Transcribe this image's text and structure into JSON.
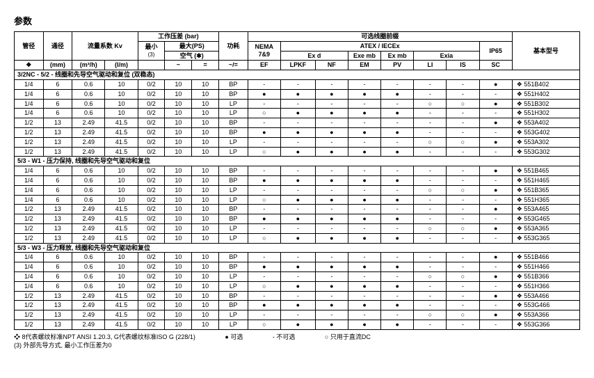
{
  "title": "参数",
  "header": {
    "pipe": "管径",
    "bore": "通径",
    "kv": "流量系数\nKv",
    "workdiff": "工作压差 (bar)",
    "min": "最小",
    "minnote": "(3)",
    "max": "最大(PS)",
    "air": "空气 (✱)",
    "power": "功耗",
    "coilprefix": "可选线圈前缀",
    "nema": "NEMA\n7&9",
    "atex": "ATEX / IECEx",
    "exd": "Ex d",
    "exemb": "Exe\nmb",
    "exmb": "Ex mb",
    "exia": "Exia",
    "ip65": "IP65",
    "model": "基本型号",
    "unit_pipe": "❖",
    "unit_bore": "(mm)",
    "unit_m3h": "(m³/h)",
    "unit_lm": "(l/m)",
    "unit_tilde": "~",
    "unit_eq": "=",
    "unit_power": "~/=",
    "col_ef": "EF",
    "col_lpkf": "LPKF",
    "col_nf": "NF",
    "col_em": "EM",
    "col_pv": "PV",
    "col_li": "LI",
    "col_is": "IS",
    "col_sc": "SC"
  },
  "sections": [
    {
      "title": "3/2NC - 5/2 - 线圈和先导空气驱动和复位 (双稳态)",
      "rows": [
        {
          "pipe": "1/4",
          "bore": "6",
          "m3h": "0.6",
          "lm": "10",
          "min": "0/2",
          "t": "10",
          "e": "10",
          "pw": "BP",
          "ef": "-",
          "lpkf": "-",
          "nf": "-",
          "em": "-",
          "pv": "-",
          "li": "-",
          "is": "-",
          "sc": "●",
          "model": "551B402"
        },
        {
          "pipe": "1/4",
          "bore": "6",
          "m3h": "0.6",
          "lm": "10",
          "min": "0/2",
          "t": "10",
          "e": "10",
          "pw": "BP",
          "ef": "●",
          "lpkf": "●",
          "nf": "●",
          "em": "●",
          "pv": "●",
          "li": "-",
          "is": "-",
          "sc": "-",
          "model": "551H402"
        },
        {
          "pipe": "1/4",
          "bore": "6",
          "m3h": "0.6",
          "lm": "10",
          "min": "0/2",
          "t": "10",
          "e": "10",
          "pw": "LP",
          "ef": "-",
          "lpkf": "-",
          "nf": "-",
          "em": "-",
          "pv": "-",
          "li": "○",
          "is": "○",
          "sc": "●",
          "model": "551B302"
        },
        {
          "pipe": "1/4",
          "bore": "6",
          "m3h": "0.6",
          "lm": "10",
          "min": "0/2",
          "t": "10",
          "e": "10",
          "pw": "LP",
          "ef": "○",
          "lpkf": "●",
          "nf": "●",
          "em": "●",
          "pv": "●",
          "li": "-",
          "is": "-",
          "sc": "-",
          "model": "551H302"
        },
        {
          "pipe": "1/2",
          "bore": "13",
          "m3h": "2.49",
          "lm": "41.5",
          "min": "0/2",
          "t": "10",
          "e": "10",
          "pw": "BP",
          "ef": "-",
          "lpkf": "-",
          "nf": "-",
          "em": "-",
          "pv": "-",
          "li": "-",
          "is": "-",
          "sc": "●",
          "model": "553A402"
        },
        {
          "pipe": "1/2",
          "bore": "13",
          "m3h": "2.49",
          "lm": "41.5",
          "min": "0/2",
          "t": "10",
          "e": "10",
          "pw": "BP",
          "ef": "●",
          "lpkf": "●",
          "nf": "●",
          "em": "●",
          "pv": "●",
          "li": "-",
          "is": "-",
          "sc": "-",
          "model": "553G402"
        },
        {
          "pipe": "1/2",
          "bore": "13",
          "m3h": "2.49",
          "lm": "41.5",
          "min": "0/2",
          "t": "10",
          "e": "10",
          "pw": "LP",
          "ef": "-",
          "lpkf": "-",
          "nf": "-",
          "em": "-",
          "pv": "-",
          "li": "○",
          "is": "○",
          "sc": "●",
          "model": "553A302"
        },
        {
          "pipe": "1/2",
          "bore": "13",
          "m3h": "2.49",
          "lm": "41.5",
          "min": "0/2",
          "t": "10",
          "e": "10",
          "pw": "LP",
          "ef": "○",
          "lpkf": "●",
          "nf": "●",
          "em": "●",
          "pv": "●",
          "li": "-",
          "is": "-",
          "sc": "-",
          "model": "553G302"
        }
      ]
    },
    {
      "title": "5/3 - W1 - 压力保持, 线圈和先导空气驱动和复位",
      "rows": [
        {
          "pipe": "1/4",
          "bore": "6",
          "m3h": "0.6",
          "lm": "10",
          "min": "0/2",
          "t": "10",
          "e": "10",
          "pw": "BP",
          "ef": "-",
          "lpkf": "-",
          "nf": "-",
          "em": "-",
          "pv": "-",
          "li": "-",
          "is": "-",
          "sc": "●",
          "model": "551B465"
        },
        {
          "pipe": "1/4",
          "bore": "6",
          "m3h": "0.6",
          "lm": "10",
          "min": "0/2",
          "t": "10",
          "e": "10",
          "pw": "BP",
          "ef": "●",
          "lpkf": "●",
          "nf": "●",
          "em": "●",
          "pv": "●",
          "li": "-",
          "is": "-",
          "sc": "-",
          "model": "551H465"
        },
        {
          "pipe": "1/4",
          "bore": "6",
          "m3h": "0.6",
          "lm": "10",
          "min": "0/2",
          "t": "10",
          "e": "10",
          "pw": "LP",
          "ef": "-",
          "lpkf": "-",
          "nf": "-",
          "em": "-",
          "pv": "-",
          "li": "○",
          "is": "○",
          "sc": "●",
          "model": "551B365"
        },
        {
          "pipe": "1/4",
          "bore": "6",
          "m3h": "0.6",
          "lm": "10",
          "min": "0/2",
          "t": "10",
          "e": "10",
          "pw": "LP",
          "ef": "○",
          "lpkf": "●",
          "nf": "●",
          "em": "●",
          "pv": "●",
          "li": "-",
          "is": "-",
          "sc": "-",
          "model": "551H365"
        },
        {
          "pipe": "1/2",
          "bore": "13",
          "m3h": "2.49",
          "lm": "41.5",
          "min": "0/2",
          "t": "10",
          "e": "10",
          "pw": "BP",
          "ef": "-",
          "lpkf": "-",
          "nf": "-",
          "em": "-",
          "pv": "-",
          "li": "-",
          "is": "-",
          "sc": "●",
          "model": "553A465"
        },
        {
          "pipe": "1/2",
          "bore": "13",
          "m3h": "2.49",
          "lm": "41.5",
          "min": "0/2",
          "t": "10",
          "e": "10",
          "pw": "BP",
          "ef": "●",
          "lpkf": "●",
          "nf": "●",
          "em": "●",
          "pv": "●",
          "li": "-",
          "is": "-",
          "sc": "-",
          "model": "553G465"
        },
        {
          "pipe": "1/2",
          "bore": "13",
          "m3h": "2.49",
          "lm": "41.5",
          "min": "0/2",
          "t": "10",
          "e": "10",
          "pw": "LP",
          "ef": "-",
          "lpkf": "-",
          "nf": "-",
          "em": "-",
          "pv": "-",
          "li": "○",
          "is": "○",
          "sc": "●",
          "model": "553A365"
        },
        {
          "pipe": "1/2",
          "bore": "13",
          "m3h": "2.49",
          "lm": "41.5",
          "min": "0/2",
          "t": "10",
          "e": "10",
          "pw": "LP",
          "ef": "○",
          "lpkf": "●",
          "nf": "●",
          "em": "●",
          "pv": "●",
          "li": "-",
          "is": "-",
          "sc": "-",
          "model": "553G365"
        }
      ]
    },
    {
      "title": "5/3 - W3 - 压力释放, 线圈和先导空气驱动和复位",
      "rows": [
        {
          "pipe": "1/4",
          "bore": "6",
          "m3h": "0.6",
          "lm": "10",
          "min": "0/2",
          "t": "10",
          "e": "10",
          "pw": "BP",
          "ef": "-",
          "lpkf": "-",
          "nf": "-",
          "em": "-",
          "pv": "-",
          "li": "-",
          "is": "-",
          "sc": "●",
          "model": "551B466"
        },
        {
          "pipe": "1/4",
          "bore": "6",
          "m3h": "0.6",
          "lm": "10",
          "min": "0/2",
          "t": "10",
          "e": "10",
          "pw": "BP",
          "ef": "●",
          "lpkf": "●",
          "nf": "●",
          "em": "●",
          "pv": "●",
          "li": "-",
          "is": "-",
          "sc": "-",
          "model": "551H466"
        },
        {
          "pipe": "1/4",
          "bore": "6",
          "m3h": "0.6",
          "lm": "10",
          "min": "0/2",
          "t": "10",
          "e": "10",
          "pw": "LP",
          "ef": "-",
          "lpkf": "-",
          "nf": "-",
          "em": "-",
          "pv": "-",
          "li": "○",
          "is": "○",
          "sc": "●",
          "model": "551B366"
        },
        {
          "pipe": "1/4",
          "bore": "6",
          "m3h": "0.6",
          "lm": "10",
          "min": "0/2",
          "t": "10",
          "e": "10",
          "pw": "LP",
          "ef": "○",
          "lpkf": "●",
          "nf": "●",
          "em": "●",
          "pv": "●",
          "li": "-",
          "is": "-",
          "sc": "-",
          "model": "551H366"
        },
        {
          "pipe": "1/2",
          "bore": "13",
          "m3h": "2.49",
          "lm": "41.5",
          "min": "0/2",
          "t": "10",
          "e": "10",
          "pw": "BP",
          "ef": "-",
          "lpkf": "-",
          "nf": "-",
          "em": "-",
          "pv": "-",
          "li": "-",
          "is": "-",
          "sc": "●",
          "model": "553A466"
        },
        {
          "pipe": "1/2",
          "bore": "13",
          "m3h": "2.49",
          "lm": "41.5",
          "min": "0/2",
          "t": "10",
          "e": "10",
          "pw": "BP",
          "ef": "●",
          "lpkf": "●",
          "nf": "●",
          "em": "●",
          "pv": "●",
          "li": "-",
          "is": "-",
          "sc": "-",
          "model": "553G466"
        },
        {
          "pipe": "1/2",
          "bore": "13",
          "m3h": "2.49",
          "lm": "41.5",
          "min": "0/2",
          "t": "10",
          "e": "10",
          "pw": "LP",
          "ef": "-",
          "lpkf": "-",
          "nf": "-",
          "em": "-",
          "pv": "-",
          "li": "○",
          "is": "○",
          "sc": "●",
          "model": "553A366"
        },
        {
          "pipe": "1/2",
          "bore": "13",
          "m3h": "2.49",
          "lm": "41.5",
          "min": "0/2",
          "t": "10",
          "e": "10",
          "pw": "LP",
          "ef": "○",
          "lpkf": "●",
          "nf": "●",
          "em": "●",
          "pv": "●",
          "li": "-",
          "is": "-",
          "sc": "-",
          "model": "553G366"
        }
      ]
    }
  ],
  "foot": {
    "note1": "❖ 8代表螺纹标准NPT ANSI 1.20.3, G代表螺纹标准ISO G (228/1)",
    "note2": "(3) 外部先导方式, 最小工作压差为0",
    "legend1": "● 可选",
    "legend2": "- 不可选",
    "legend3": "○ 只用于直流DC"
  },
  "style": {
    "cols": {
      "pipe": 30,
      "bore": 30,
      "m3h": 34,
      "lm": 34,
      "min": 28,
      "t": 28,
      "e": 28,
      "pw": 30,
      "ef": 34,
      "lpkf": 36,
      "nf": 34,
      "em": 34,
      "pv": 34,
      "li": 34,
      "is": 34,
      "sc": 34,
      "model": 70
    }
  }
}
